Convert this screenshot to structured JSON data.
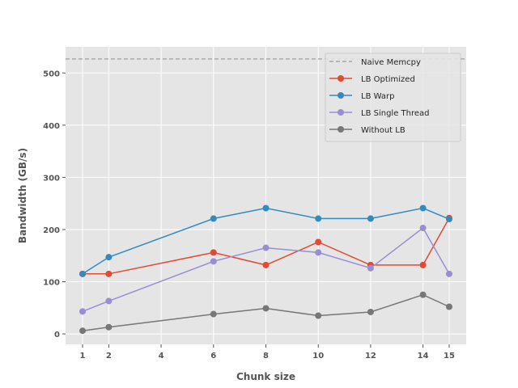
{
  "chart_data": {
    "type": "line",
    "title": "",
    "xlabel": "Chunk size",
    "ylabel": "Bandwidth (GB/s)",
    "x_ticks": [
      1,
      2,
      4,
      6,
      8,
      10,
      12,
      14,
      15
    ],
    "y_ticks": [
      0,
      100,
      200,
      300,
      400,
      500
    ],
    "xlim": [
      0.35,
      15.65
    ],
    "ylim": [
      -20,
      550
    ],
    "grid": true,
    "legend_position": "top-right",
    "reference_lines": [
      {
        "name": "Naive Memcpy",
        "y": 527,
        "style": "dashed",
        "color": "#aaaaaa"
      }
    ],
    "series": [
      {
        "name": "LB Optimized",
        "color": "#e24a33",
        "x": [
          1,
          2,
          6,
          8,
          10,
          12,
          14,
          15
        ],
        "values": [
          115,
          115,
          156,
          132,
          176,
          132,
          132,
          222
        ]
      },
      {
        "name": "LB Warp",
        "color": "#348abd",
        "x": [
          1,
          2,
          6,
          8,
          10,
          12,
          14,
          15
        ],
        "values": [
          115,
          147,
          221,
          241,
          221,
          221,
          241,
          220
        ]
      },
      {
        "name": "LB Single Thread",
        "color": "#988ed5",
        "x": [
          1,
          2,
          6,
          8,
          10,
          12,
          14,
          15
        ],
        "values": [
          43,
          63,
          139,
          165,
          156,
          126,
          203,
          115
        ]
      },
      {
        "name": "Without LB",
        "color": "#777777",
        "x": [
          1,
          2,
          6,
          8,
          10,
          12,
          14,
          15
        ],
        "values": [
          6,
          13,
          38,
          49,
          35,
          42,
          75,
          52
        ]
      }
    ]
  }
}
